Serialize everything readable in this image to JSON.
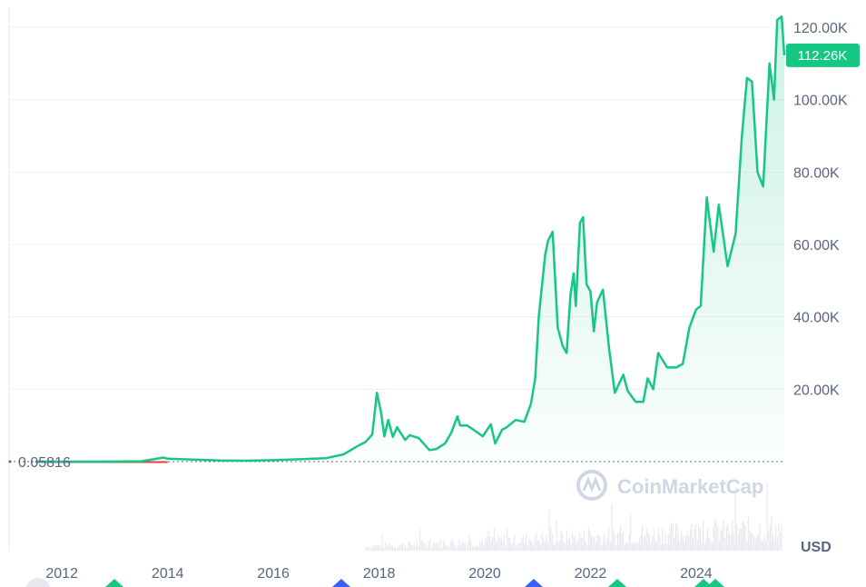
{
  "chart_data": {
    "type": "area",
    "x_tick_labels": [
      "2012",
      "2014",
      "2016",
      "2018",
      "2020",
      "2022",
      "2024"
    ],
    "y_tick_labels": [
      "20.00K",
      "40.00K",
      "60.00K",
      "80.00K",
      "100.00K",
      "120.00K"
    ],
    "y_tick_values": [
      20000,
      40000,
      60000,
      80000,
      100000,
      120000
    ],
    "ylim": [
      0,
      120000
    ],
    "xlim": [
      "2011-01-01",
      "2025-09-01"
    ],
    "start_price_label": "0.05816",
    "start_price_value": 0.05816,
    "current_price_label": "112.26K",
    "current_price_value": 112260,
    "currency_label": "USD",
    "watermark": "CoinMarketCap",
    "line_color": "#16c784",
    "series": [
      {
        "x": [
          "2011-07-01",
          "2012-01-01",
          "2012-07-01",
          "2013-01-01",
          "2013-07-01",
          "2013-12-01",
          "2014-01-01",
          "2014-06-01",
          "2015-01-01",
          "2015-07-01",
          "2016-01-01",
          "2016-07-01",
          "2017-01-01",
          "2017-05-01",
          "2017-08-01",
          "2017-10-01",
          "2017-11-15",
          "2017-12-17",
          "2018-01-15",
          "2018-02-06",
          "2018-03-05",
          "2018-04-06",
          "2018-05-05",
          "2018-06-30",
          "2018-08-01",
          "2018-10-01",
          "2018-11-20",
          "2018-12-15",
          "2019-02-01",
          "2019-04-01",
          "2019-05-15",
          "2019-06-26",
          "2019-07-15",
          "2019-09-01",
          "2019-10-26",
          "2019-12-18",
          "2020-02-12",
          "2020-03-13",
          "2020-04-30",
          "2020-06-01",
          "2020-08-01",
          "2020-10-01",
          "2020-11-15",
          "2020-12-15",
          "2021-01-08",
          "2021-02-21",
          "2021-03-13",
          "2021-04-14",
          "2021-05-19",
          "2021-06-22",
          "2021-07-20",
          "2021-08-15",
          "2021-09-07",
          "2021-09-21",
          "2021-10-20",
          "2021-11-10",
          "2021-12-05",
          "2022-01-01",
          "2022-01-24",
          "2022-02-15",
          "2022-03-28",
          "2022-05-10",
          "2022-06-18",
          "2022-08-15",
          "2022-09-15",
          "2022-11-09",
          "2022-12-31",
          "2023-01-31",
          "2023-03-10",
          "2023-04-14",
          "2023-06-15",
          "2023-08-17",
          "2023-10-01",
          "2023-11-15",
          "2023-12-31",
          "2024-02-01",
          "2024-03-14",
          "2024-05-01",
          "2024-06-05",
          "2024-08-05",
          "2024-09-30",
          "2024-11-12",
          "2024-12-17",
          "2025-01-21",
          "2025-02-28",
          "2025-04-08",
          "2025-05-22",
          "2025-06-22",
          "2025-07-14",
          "2025-08-14",
          "2025-09-01"
        ],
        "y": [
          0.05816,
          5,
          7,
          13,
          90,
          1100,
          800,
          600,
          300,
          250,
          400,
          650,
          950,
          2000,
          4200,
          5500,
          7500,
          19000,
          13500,
          7000,
          11500,
          6800,
          9500,
          6000,
          7300,
          6500,
          4300,
          3200,
          3500,
          5000,
          8000,
          12500,
          10000,
          10000,
          8500,
          7000,
          10300,
          5000,
          8800,
          9500,
          11500,
          11000,
          16000,
          23000,
          40000,
          57000,
          61000,
          63500,
          37000,
          32000,
          30000,
          46000,
          52000,
          43000,
          66000,
          67500,
          49000,
          47000,
          36000,
          44000,
          47500,
          31000,
          19000,
          24000,
          19500,
          16500,
          16500,
          23000,
          20000,
          30000,
          26000,
          26000,
          27000,
          37000,
          42000,
          43000,
          73000,
          58000,
          71000,
          54000,
          63000,
          90000,
          106000,
          105000,
          80000,
          76000,
          110000,
          100000,
          122000,
          123000,
          112260
        ]
      }
    ]
  }
}
